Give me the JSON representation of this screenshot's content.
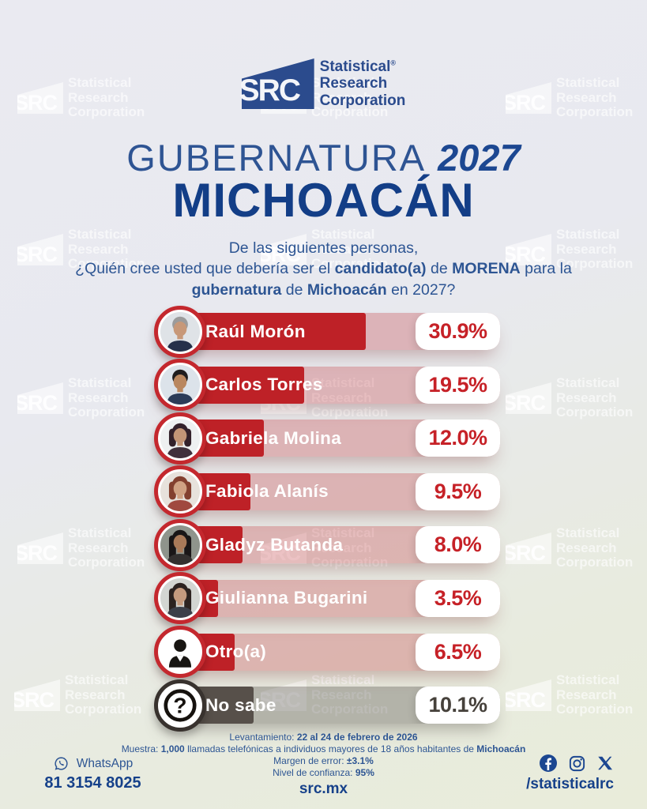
{
  "brand": {
    "logo_text": "SRC",
    "lines": [
      "Statistical",
      "Research",
      "Corporation"
    ],
    "registered": "®"
  },
  "header": {
    "title_light": "GUBERNATURA",
    "title_year": "2027",
    "title_state": "MICHOACÁN",
    "question_lines": [
      [
        {
          "t": "De las siguientes personas,",
          "b": false
        }
      ],
      [
        {
          "t": "¿Quién cree usted que debería ser el ",
          "b": false
        },
        {
          "t": "candidato(a)",
          "b": true
        },
        {
          "t": " de ",
          "b": false
        },
        {
          "t": "MORENA",
          "b": true
        },
        {
          "t": " para la",
          "b": false
        }
      ],
      [
        {
          "t": "gubernatura",
          "b": true
        },
        {
          "t": " de ",
          "b": false
        },
        {
          "t": "Michoacán",
          "b": true
        },
        {
          "t": " en 2027?",
          "b": false
        }
      ]
    ]
  },
  "chart_data": {
    "type": "bar",
    "orientation": "horizontal",
    "title": "¿Quién cree usted que debería ser el candidato(a) de MORENA para la gubernatura de Michoacán en 2027?",
    "unit": "%",
    "xlim": [
      0,
      100
    ],
    "categories": [
      "Raúl Morón",
      "Carlos Torres",
      "Gabriela Molina",
      "Fabiola Alanís",
      "Gladyz Butanda",
      "Giulianna Bugarini",
      "Otro(a)",
      "No sabe"
    ],
    "values": [
      30.9,
      19.5,
      12.0,
      9.5,
      8.0,
      3.5,
      6.5,
      10.1
    ],
    "value_labels": [
      "30.9%",
      "19.5%",
      "12.0%",
      "9.5%",
      "8.0%",
      "3.5%",
      "6.5%",
      "10.1%"
    ],
    "rows": [
      {
        "label": "Raúl Morón",
        "value": 30.9,
        "theme": "red",
        "avatar": {
          "kind": "photo",
          "hairstyle": "short",
          "hair": "#9b9b9b",
          "skin": "#c79878",
          "shirt": "#25304a",
          "bg": "#dfe3e7"
        }
      },
      {
        "label": "Carlos Torres",
        "value": 19.5,
        "theme": "red",
        "avatar": {
          "kind": "photo",
          "hairstyle": "short",
          "hair": "#1f1d1e",
          "skin": "#b9875f",
          "shirt": "#2c3c58",
          "bg": "#dce3ea"
        }
      },
      {
        "label": "Gabriela Molina",
        "value": 12.0,
        "theme": "red",
        "avatar": {
          "kind": "photo",
          "hairstyle": "bob",
          "hair": "#33212b",
          "skin": "#c39577",
          "shirt": "#40303c",
          "bg": "#eef0f1"
        }
      },
      {
        "label": "Fabiola Alanís",
        "value": 9.5,
        "theme": "red",
        "avatar": {
          "kind": "photo",
          "hairstyle": "bob",
          "hair": "#83402f",
          "skin": "#d0a284",
          "shirt": "#a0493f",
          "bg": "#e7e2dc"
        }
      },
      {
        "label": "Gladyz Butanda",
        "value": 8.0,
        "theme": "red",
        "avatar": {
          "kind": "photo",
          "hairstyle": "long",
          "hair": "#191617",
          "skin": "#a97a59",
          "shirt": "#33302f",
          "bg": "#8f948c"
        }
      },
      {
        "label": "Giulianna Bugarini",
        "value": 3.5,
        "theme": "red",
        "avatar": {
          "kind": "photo",
          "hairstyle": "long",
          "hair": "#2c2320",
          "skin": "#c59b7e",
          "shirt": "#3c4049",
          "bg": "#d3d6d2"
        }
      },
      {
        "label": "Otro(a)",
        "value": 6.5,
        "theme": "red",
        "avatar": {
          "kind": "person-icon"
        }
      },
      {
        "label": "No sabe",
        "value": 10.1,
        "theme": "gray",
        "avatar": {
          "kind": "question-icon"
        }
      }
    ]
  },
  "footer": {
    "methodology": [
      [
        {
          "t": "Levantamiento: ",
          "b": false
        },
        {
          "t": "22 al 24 de febrero de 2026",
          "b": true
        }
      ],
      [
        {
          "t": "Muestra: ",
          "b": false
        },
        {
          "t": "1,000",
          "b": true
        },
        {
          "t": " llamadas telefónicas a individuos mayores de 18 años habitantes de ",
          "b": false
        },
        {
          "t": "Michoacán",
          "b": true
        }
      ],
      [
        {
          "t": "Margen de error: ",
          "b": false
        },
        {
          "t": "±3.1%",
          "b": true
        }
      ],
      [
        {
          "t": "Nivel de confianza: ",
          "b": false
        },
        {
          "t": "95%",
          "b": true
        }
      ]
    ],
    "whatsapp_label": "WhatsApp",
    "whatsapp_number": "81 3154 8025",
    "website": "src.mx",
    "social_handle": "/statisticalrc",
    "social_icons": [
      "facebook-icon",
      "instagram-icon",
      "x-icon"
    ]
  },
  "colors": {
    "brand_blue": "#2b4b8d",
    "title_blue": "#1c4791",
    "title_blue_dark": "#133e87",
    "text_blue": "#2d5593",
    "number_blue": "#16418a",
    "bar_red": "#be2127",
    "ring_red": "#c4282e",
    "percent_red": "#c62127",
    "track_red": "rgba(190,33,39,0.27)",
    "bar_gray": "#57504a",
    "ring_gray": "#38322e",
    "percent_gray": "#46413b",
    "track_gray": "rgba(87,80,74,0.36)",
    "background_top": "#e9e9f0",
    "background_bottom": "#e9ecda"
  }
}
